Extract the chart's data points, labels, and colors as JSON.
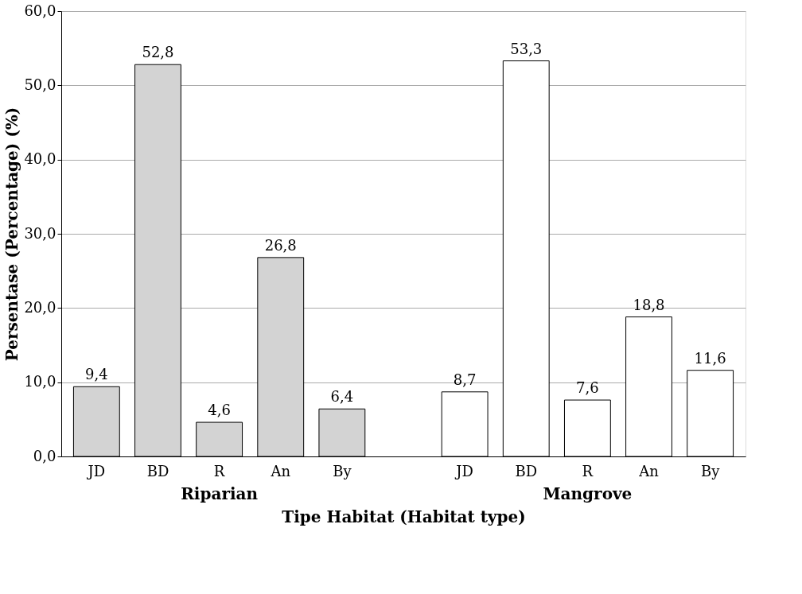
{
  "chart_data": {
    "type": "bar",
    "xlabel": "Tipe Habitat (Habitat type)",
    "ylabel": "Persentase (Percentage) (%)",
    "categories": [
      "JD",
      "BD",
      "R",
      "An",
      "By",
      null,
      "JD",
      "BD",
      "R",
      "An",
      "By"
    ],
    "series": [
      {
        "name": "Riparian",
        "color": "#d3d3d3",
        "values": [
          9.4,
          52.8,
          4.6,
          26.8,
          6.4,
          null,
          null,
          null,
          null,
          null,
          null
        ],
        "value_labels": [
          "9,4",
          "52,8",
          "4,6",
          "26,8",
          "6,4",
          null,
          null,
          null,
          null,
          null,
          null
        ]
      },
      {
        "name": "Mangrove",
        "color": "#ffffff",
        "values": [
          null,
          null,
          null,
          null,
          null,
          null,
          8.7,
          53.3,
          7.6,
          18.8,
          11.6
        ],
        "value_labels": [
          null,
          null,
          null,
          null,
          null,
          null,
          "8,7",
          "53,3",
          "7,6",
          "18,8",
          "11,6"
        ]
      }
    ],
    "ylim": [
      0,
      60
    ],
    "yticks": [
      {
        "value": 0,
        "label": "0,0"
      },
      {
        "value": 10,
        "label": "10,0"
      },
      {
        "value": 20,
        "label": "20,0"
      },
      {
        "value": 30,
        "label": "30,0"
      },
      {
        "value": 40,
        "label": "40,0"
      },
      {
        "value": 50,
        "label": "50,0"
      },
      {
        "value": 60,
        "label": "60,0"
      }
    ],
    "grid": "y"
  }
}
